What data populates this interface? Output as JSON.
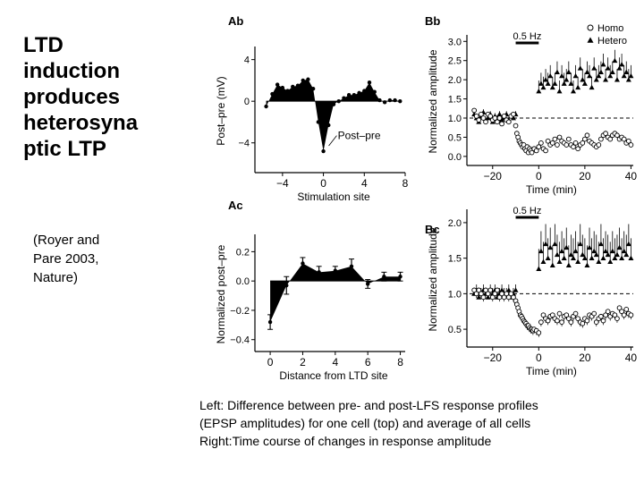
{
  "slide": {
    "title_lines": [
      "LTD",
      "induction",
      "produces",
      "heterosyna",
      "ptic LTP"
    ],
    "citation_lines": [
      "(Royer and",
      "Pare 2003,",
      "Nature)"
    ],
    "caption_lines": [
      "Left: Difference between pre- and post-LFS response profiles",
      "(EPSP amplitudes) for one cell (top) and average of all cells",
      "Right:Time course of changes in response amplitude"
    ]
  },
  "chart_data": [
    {
      "panel": "Ab",
      "type": "area",
      "xlabel": "Stimulation site",
      "ylabel": "Post–pre (mV)",
      "xlim": [
        -6,
        8
      ],
      "ylim": [
        -6,
        5
      ],
      "xticks": [
        -4,
        0,
        4,
        8
      ],
      "yticks": [
        -4,
        0,
        4
      ],
      "xtick_labels": [
        "−4",
        "0",
        "4",
        "8"
      ],
      "ytick_labels": [
        "−4",
        "0",
        "4"
      ],
      "annotation": "Post–pre",
      "series": [
        {
          "x": [
            -5.6,
            -5.0,
            -4.5,
            -4.0,
            -3.5,
            -3.0,
            -2.5,
            -2.0,
            -1.5,
            -1.0,
            -0.5,
            0.0,
            0.5,
            1.0,
            1.5,
            2.0,
            2.5,
            3.0,
            3.5,
            4.0,
            4.5,
            5.0,
            5.5,
            6.0,
            6.5,
            7.0,
            7.5
          ],
          "y": [
            -0.5,
            0.7,
            1.6,
            1.3,
            1.0,
            1.4,
            1.5,
            2.0,
            2.1,
            1.2,
            -2.0,
            -4.8,
            -2.3,
            -0.3,
            0.0,
            0.3,
            0.6,
            0.6,
            0.8,
            1.0,
            1.8,
            0.9,
            0.1,
            -0.1,
            0.1,
            0.1,
            0.0
          ]
        }
      ]
    },
    {
      "panel": "Ac",
      "type": "area",
      "xlabel": "Distance from LTD site",
      "ylabel": "Normalized post–pre",
      "xlim": [
        -0.5,
        8.3
      ],
      "ylim": [
        -0.42,
        0.3
      ],
      "xticks": [
        0,
        2,
        4,
        6,
        8
      ],
      "yticks": [
        -0.4,
        -0.2,
        0.0,
        0.2
      ],
      "xtick_labels": [
        "0",
        "2",
        "4",
        "6",
        "8"
      ],
      "ytick_labels": [
        "−0.4",
        "−0.2",
        "0.0",
        "0.2"
      ],
      "series": [
        {
          "x": [
            0,
            1,
            2,
            3,
            4,
            5,
            6,
            7,
            8
          ],
          "y": [
            -0.28,
            -0.03,
            0.12,
            0.06,
            0.07,
            0.1,
            -0.02,
            0.03,
            0.03
          ],
          "error": [
            0.05,
            0.06,
            0.04,
            0.04,
            0.03,
            0.05,
            0.03,
            0.03,
            0.03
          ]
        }
      ]
    },
    {
      "panel": "Bb",
      "type": "scatter",
      "xlabel": "Time (min)",
      "ylabel": "Normalized amplitude",
      "xlim": [
        -30,
        41
      ],
      "ylim": [
        -0.05,
        3.1
      ],
      "xticks": [
        -20,
        0,
        20,
        40
      ],
      "yticks": [
        0.0,
        0.5,
        1.0,
        1.5,
        2.0,
        2.5,
        3.0
      ],
      "xtick_labels": [
        "−20",
        "0",
        "20",
        "40"
      ],
      "ytick_labels": [
        "0.0",
        "0.5",
        "1.0",
        "1.5",
        "2.0",
        "2.5",
        "3.0"
      ],
      "stim_label": "0.5 Hz",
      "stim_interval": [
        -10,
        0
      ],
      "reference_line": 1.0,
      "legend": "top-right",
      "series": [
        {
          "name": "Homo",
          "marker": "open-circle",
          "x": [
            -28,
            -27,
            -26,
            -25,
            -24,
            -23,
            -22,
            -21,
            -20,
            -19,
            -18,
            -17,
            -16,
            -15,
            -14,
            -13,
            -12,
            -11,
            -10,
            -9.5,
            -9,
            -8.5,
            -8,
            -7.5,
            -7,
            -6.5,
            -6,
            -5.5,
            -5,
            -4.5,
            -4,
            -3.5,
            -3,
            -2,
            -1,
            0,
            1,
            2,
            3,
            4,
            5,
            6,
            7,
            8,
            9,
            10,
            11,
            12,
            13,
            14,
            15,
            16,
            17,
            18,
            19,
            20,
            21,
            22,
            23,
            24,
            25,
            26,
            27,
            28,
            29,
            30,
            31,
            32,
            33,
            34,
            35,
            36,
            37,
            38,
            39,
            40
          ],
          "y": [
            1.2,
            1.05,
            0.95,
            1.1,
            1.0,
            0.9,
            1.1,
            1.05,
            0.95,
            1.0,
            0.9,
            1.0,
            0.85,
            1.05,
            0.95,
            0.9,
            1.05,
            1.1,
            0.8,
            0.6,
            0.5,
            0.4,
            0.35,
            0.3,
            0.25,
            0.3,
            0.2,
            0.15,
            0.25,
            0.1,
            0.2,
            0.15,
            0.1,
            0.2,
            0.15,
            0.25,
            0.35,
            0.2,
            0.15,
            0.4,
            0.3,
            0.35,
            0.45,
            0.3,
            0.5,
            0.4,
            0.35,
            0.3,
            0.45,
            0.3,
            0.25,
            0.35,
            0.2,
            0.3,
            0.35,
            0.45,
            0.55,
            0.4,
            0.35,
            0.3,
            0.25,
            0.3,
            0.45,
            0.55,
            0.6,
            0.5,
            0.45,
            0.55,
            0.6,
            0.55,
            0.45,
            0.5,
            0.45,
            0.35,
            0.4,
            0.3
          ]
        },
        {
          "name": "Hetero",
          "marker": "filled-triangle",
          "x": [
            -28,
            -27,
            -26,
            -25,
            -24,
            -23,
            -22,
            -21,
            -20,
            -19,
            -18,
            -17,
            -16,
            -15,
            -14,
            -13,
            -12,
            -11,
            -10,
            0,
            1,
            2,
            3,
            4,
            5,
            6,
            7,
            8,
            9,
            10,
            11,
            12,
            13,
            14,
            15,
            16,
            17,
            18,
            19,
            20,
            21,
            22,
            23,
            24,
            25,
            26,
            27,
            28,
            29,
            30,
            31,
            32,
            33,
            34,
            35,
            36,
            37,
            38,
            39,
            40
          ],
          "y": [
            1.1,
            1.0,
            0.9,
            1.05,
            1.15,
            0.95,
            1.0,
            1.1,
            0.9,
            1.05,
            1.0,
            1.1,
            0.95,
            1.0,
            1.1,
            0.95,
            1.05,
            1.0,
            1.1,
            1.7,
            1.9,
            1.8,
            2.0,
            1.9,
            2.1,
            1.8,
            1.9,
            2.2,
            1.7,
            2.1,
            1.9,
            2.0,
            2.2,
            1.9,
            1.7,
            2.1,
            1.8,
            2.3,
            2.0,
            1.9,
            2.2,
            2.1,
            1.8,
            2.3,
            2.0,
            2.1,
            2.2,
            2.4,
            2.0,
            2.3,
            2.1,
            2.2,
            2.5,
            2.0,
            2.3,
            2.4,
            2.1,
            2.2,
            2.0,
            2.1
          ]
        }
      ]
    },
    {
      "panel": "Bc",
      "type": "scatter",
      "xlabel": "Time (min)",
      "ylabel": "Normalized amplitude",
      "xlim": [
        -30,
        41
      ],
      "ylim": [
        0.35,
        2.15
      ],
      "xticks": [
        -20,
        0,
        20,
        40
      ],
      "yticks": [
        0.5,
        1.0,
        1.5,
        2.0
      ],
      "xtick_labels": [
        "−20",
        "0",
        "20",
        "40"
      ],
      "ytick_labels": [
        "0.5",
        "1.0",
        "1.5",
        "2.0"
      ],
      "stim_label": "0.5 Hz",
      "stim_interval": [
        -10,
        0
      ],
      "reference_line": 1.0,
      "series": [
        {
          "name": "Homo",
          "marker": "open-circle",
          "x": [
            -28,
            -27,
            -26,
            -25,
            -24,
            -23,
            -22,
            -21,
            -20,
            -19,
            -18,
            -17,
            -16,
            -15,
            -14,
            -13,
            -12,
            -11,
            -10,
            -9.5,
            -9,
            -8.5,
            -8,
            -7.5,
            -7,
            -6.5,
            -6,
            -5.5,
            -5,
            -4.5,
            -4,
            -3.5,
            -3,
            -2.5,
            -2,
            -1,
            0,
            1,
            2,
            3,
            4,
            5,
            6,
            7,
            8,
            9,
            10,
            11,
            12,
            13,
            14,
            15,
            16,
            17,
            18,
            19,
            20,
            21,
            22,
            23,
            24,
            25,
            26,
            27,
            28,
            29,
            30,
            31,
            32,
            33,
            34,
            35,
            36,
            37,
            38,
            39,
            40
          ],
          "y": [
            1.05,
            1.0,
            1.05,
            1.0,
            0.95,
            1.05,
            1.0,
            1.05,
            0.95,
            1.0,
            1.05,
            0.95,
            1.0,
            0.95,
            1.0,
            0.95,
            1.0,
            0.95,
            0.9,
            0.85,
            0.8,
            0.75,
            0.7,
            0.68,
            0.65,
            0.62,
            0.6,
            0.58,
            0.55,
            0.55,
            0.52,
            0.5,
            0.5,
            0.48,
            0.5,
            0.48,
            0.45,
            0.6,
            0.7,
            0.65,
            0.62,
            0.68,
            0.7,
            0.65,
            0.62,
            0.72,
            0.6,
            0.68,
            0.7,
            0.65,
            0.6,
            0.68,
            0.72,
            0.65,
            0.6,
            0.58,
            0.65,
            0.62,
            0.7,
            0.68,
            0.72,
            0.6,
            0.65,
            0.68,
            0.62,
            0.7,
            0.75,
            0.68,
            0.72,
            0.7,
            0.65,
            0.8,
            0.75,
            0.7,
            0.78,
            0.72,
            0.7
          ]
        },
        {
          "name": "Hetero",
          "marker": "filled-triangle",
          "x": [
            -28,
            -27,
            -26,
            -25,
            -24,
            -23,
            -22,
            -21,
            -20,
            -19,
            -18,
            -17,
            -16,
            -15,
            -14,
            -13,
            -12,
            -11,
            -10,
            0,
            1,
            2,
            3,
            4,
            5,
            6,
            7,
            8,
            9,
            10,
            11,
            12,
            13,
            14,
            15,
            16,
            17,
            18,
            19,
            20,
            21,
            22,
            23,
            24,
            25,
            26,
            27,
            28,
            29,
            30,
            31,
            32,
            33,
            34,
            35,
            36,
            37,
            38,
            39,
            40
          ],
          "y": [
            1.0,
            1.05,
            0.95,
            1.0,
            1.05,
            1.0,
            0.95,
            1.05,
            1.0,
            1.05,
            0.95,
            1.0,
            1.05,
            1.0,
            1.0,
            1.05,
            0.95,
            1.0,
            1.05,
            1.35,
            1.6,
            1.45,
            1.7,
            1.5,
            1.65,
            1.4,
            1.7,
            1.55,
            1.45,
            1.6,
            1.5,
            1.65,
            1.4,
            1.55,
            1.5,
            1.6,
            1.45,
            1.7,
            1.55,
            1.5,
            1.4,
            1.65,
            1.5,
            1.6,
            1.55,
            1.45,
            1.7,
            1.5,
            1.6,
            1.55,
            1.45,
            1.6,
            1.5,
            1.55,
            1.65,
            1.5,
            1.6,
            1.55,
            1.7,
            1.5
          ]
        }
      ]
    }
  ]
}
